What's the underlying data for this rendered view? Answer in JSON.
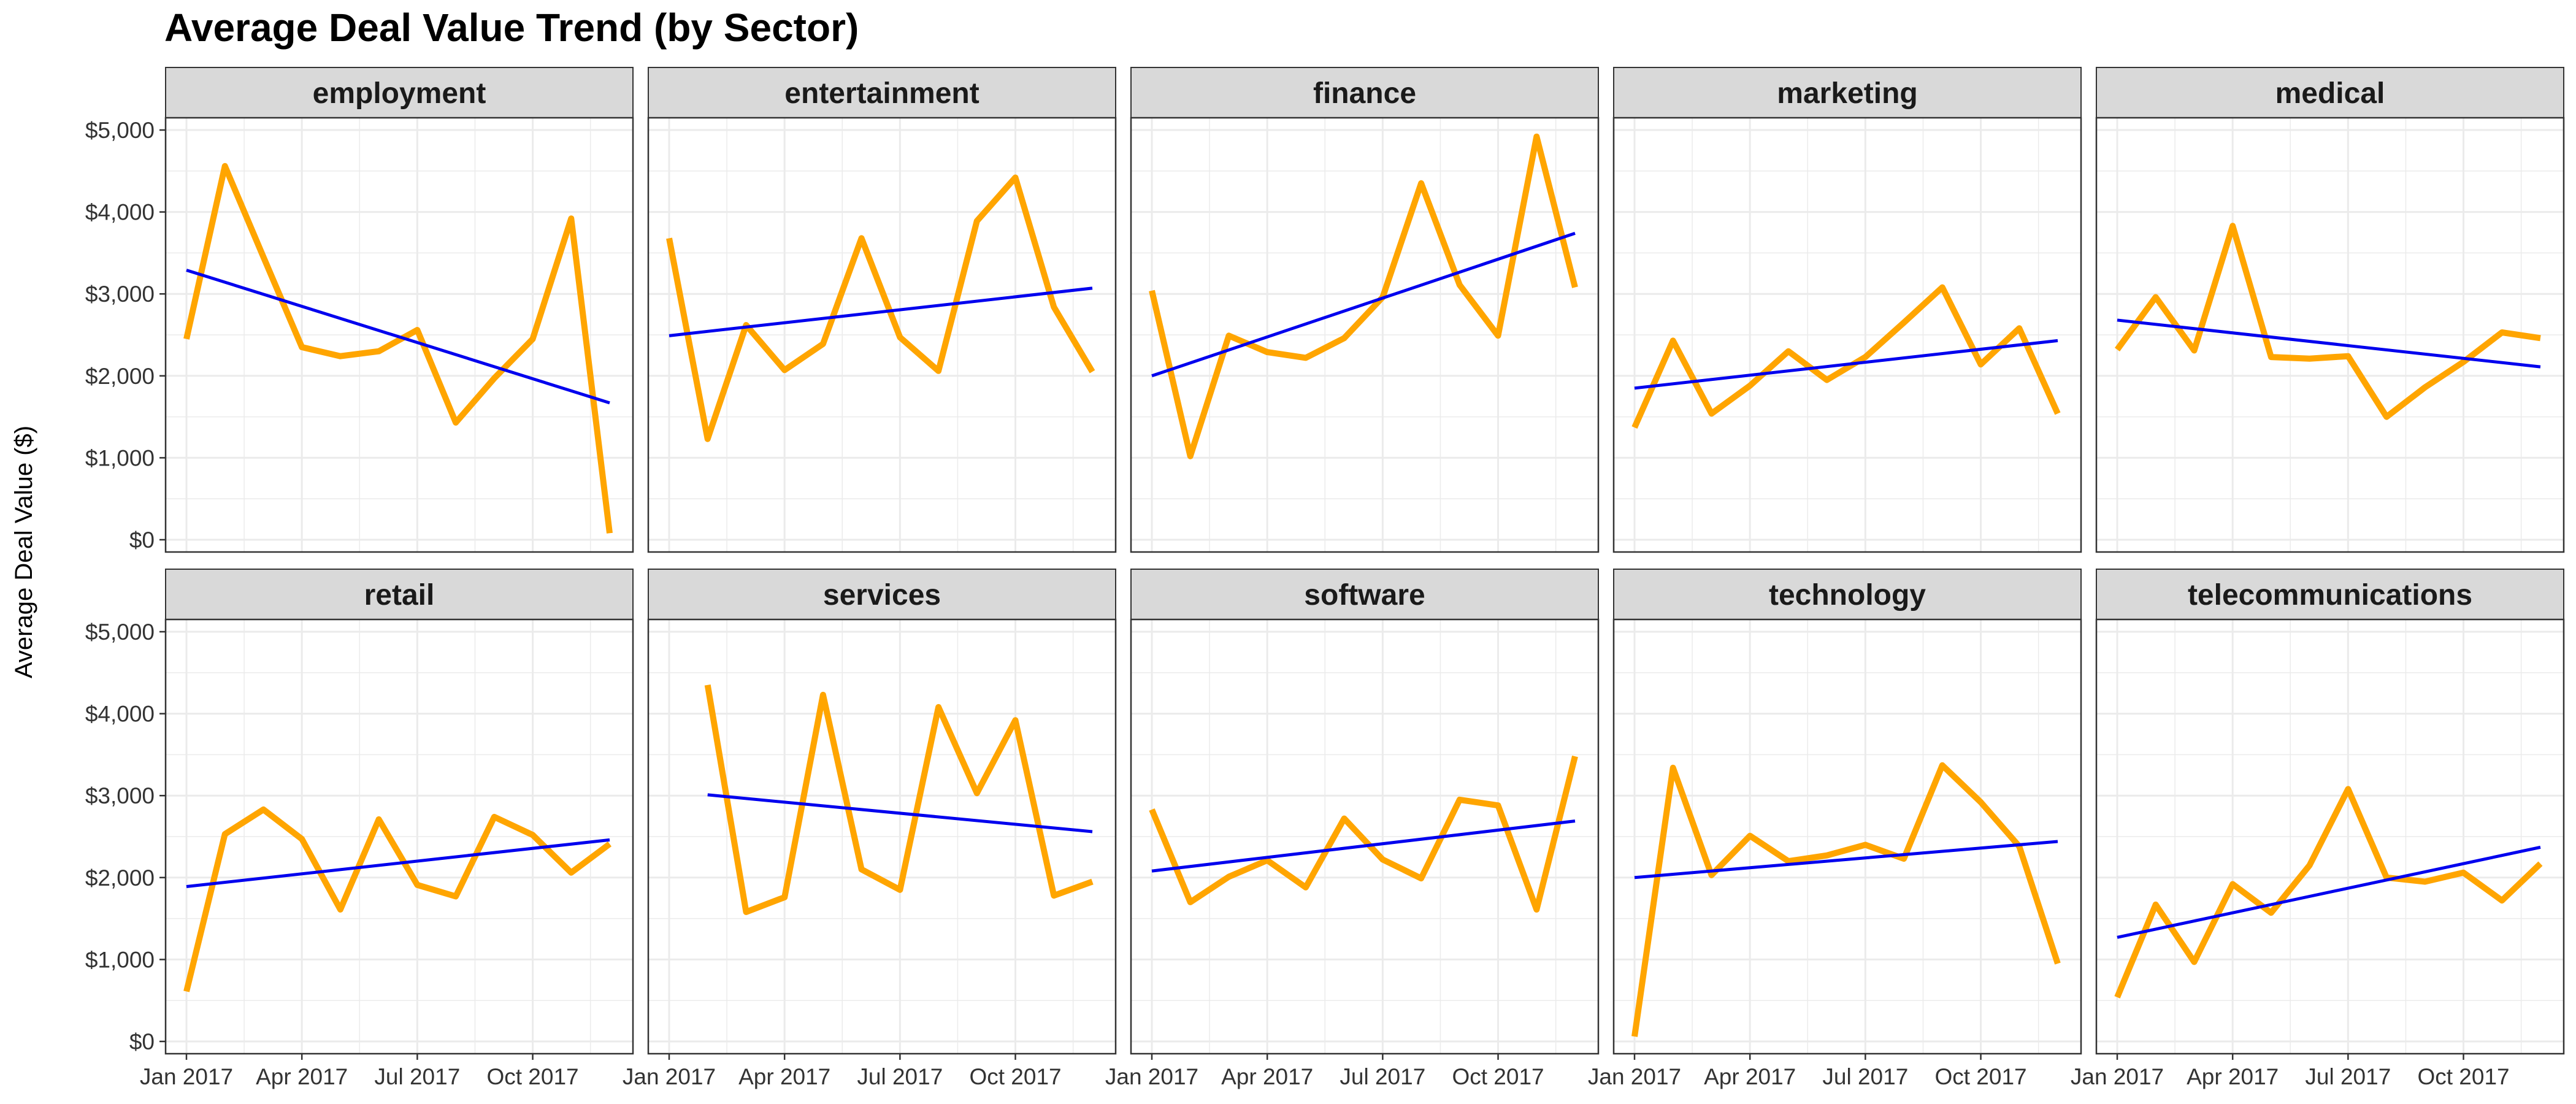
{
  "chart_data": {
    "type": "line",
    "title": "Average Deal Value Trend (by Sector)",
    "ylabel": "Average Deal Value ($)",
    "xlabel": "",
    "x": [
      "2017-01",
      "2017-02",
      "2017-03",
      "2017-04",
      "2017-05",
      "2017-06",
      "2017-07",
      "2017-08",
      "2017-09",
      "2017-10",
      "2017-11",
      "2017-12"
    ],
    "x_tick_labels": [
      "Jan 2017",
      "Apr 2017",
      "Jul 2017",
      "Oct 2017"
    ],
    "y_tick_labels": [
      "$0",
      "$1,000",
      "$2,000",
      "$3,000",
      "$4,000",
      "$5,000"
    ],
    "ylim": [
      0,
      5000
    ],
    "colors": {
      "series": "#FFA500",
      "trend": "#0000EE",
      "strip_fill": "#D9D9D9",
      "grid": "#EBEBEB"
    },
    "panels": [
      {
        "name": "employment",
        "values": [
          2450,
          4560,
          3450,
          2350,
          2240,
          2300,
          2560,
          1430,
          1970,
          2450,
          3920,
          80
        ],
        "trend": [
          3290,
          1670
        ]
      },
      {
        "name": "entertainment",
        "values": [
          3680,
          1230,
          2620,
          2070,
          2390,
          3680,
          2470,
          2060,
          3890,
          4420,
          2840,
          2050
        ],
        "trend": [
          2490,
          3070
        ]
      },
      {
        "name": "finance",
        "values": [
          3040,
          1020,
          2490,
          2290,
          2220,
          2460,
          2960,
          4350,
          3110,
          2490,
          4920,
          3080
        ],
        "trend": [
          2000,
          3740
        ]
      },
      {
        "name": "marketing",
        "values": [
          1370,
          2430,
          1540,
          1880,
          2300,
          1950,
          2230,
          2650,
          3080,
          2140,
          2580,
          1540
        ],
        "trend": [
          1850,
          2430
        ]
      },
      {
        "name": "medical",
        "values": [
          2320,
          2960,
          2310,
          3830,
          2230,
          2210,
          2240,
          1500,
          1860,
          2170,
          2530,
          2460
        ],
        "trend": [
          2680,
          2110
        ]
      },
      {
        "name": "retail",
        "values": [
          610,
          2530,
          2830,
          2470,
          1610,
          2710,
          1910,
          1770,
          2740,
          2520,
          2060,
          2410
        ],
        "trend": [
          1890,
          2460
        ]
      },
      {
        "name": "services",
        "values": [
          null,
          4350,
          1580,
          1760,
          4230,
          2100,
          1850,
          4080,
          3030,
          3920,
          1780,
          1950
        ],
        "trend_x": [
          1,
          11
        ],
        "trend": [
          3010,
          2560
        ]
      },
      {
        "name": "software",
        "values": [
          2830,
          1700,
          2010,
          2210,
          1880,
          2720,
          2220,
          1990,
          2950,
          2880,
          1610,
          3480
        ],
        "trend": [
          2080,
          2690
        ]
      },
      {
        "name": "technology",
        "values": [
          60,
          3340,
          2030,
          2510,
          2200,
          2270,
          2400,
          2230,
          3370,
          2920,
          2380,
          950
        ],
        "trend": [
          2000,
          2440
        ]
      },
      {
        "name": "telecommunications",
        "values": [
          540,
          1670,
          970,
          1920,
          1570,
          2150,
          3080,
          2000,
          1950,
          2060,
          1720,
          2170
        ],
        "trend": [
          1270,
          2370
        ]
      }
    ]
  }
}
